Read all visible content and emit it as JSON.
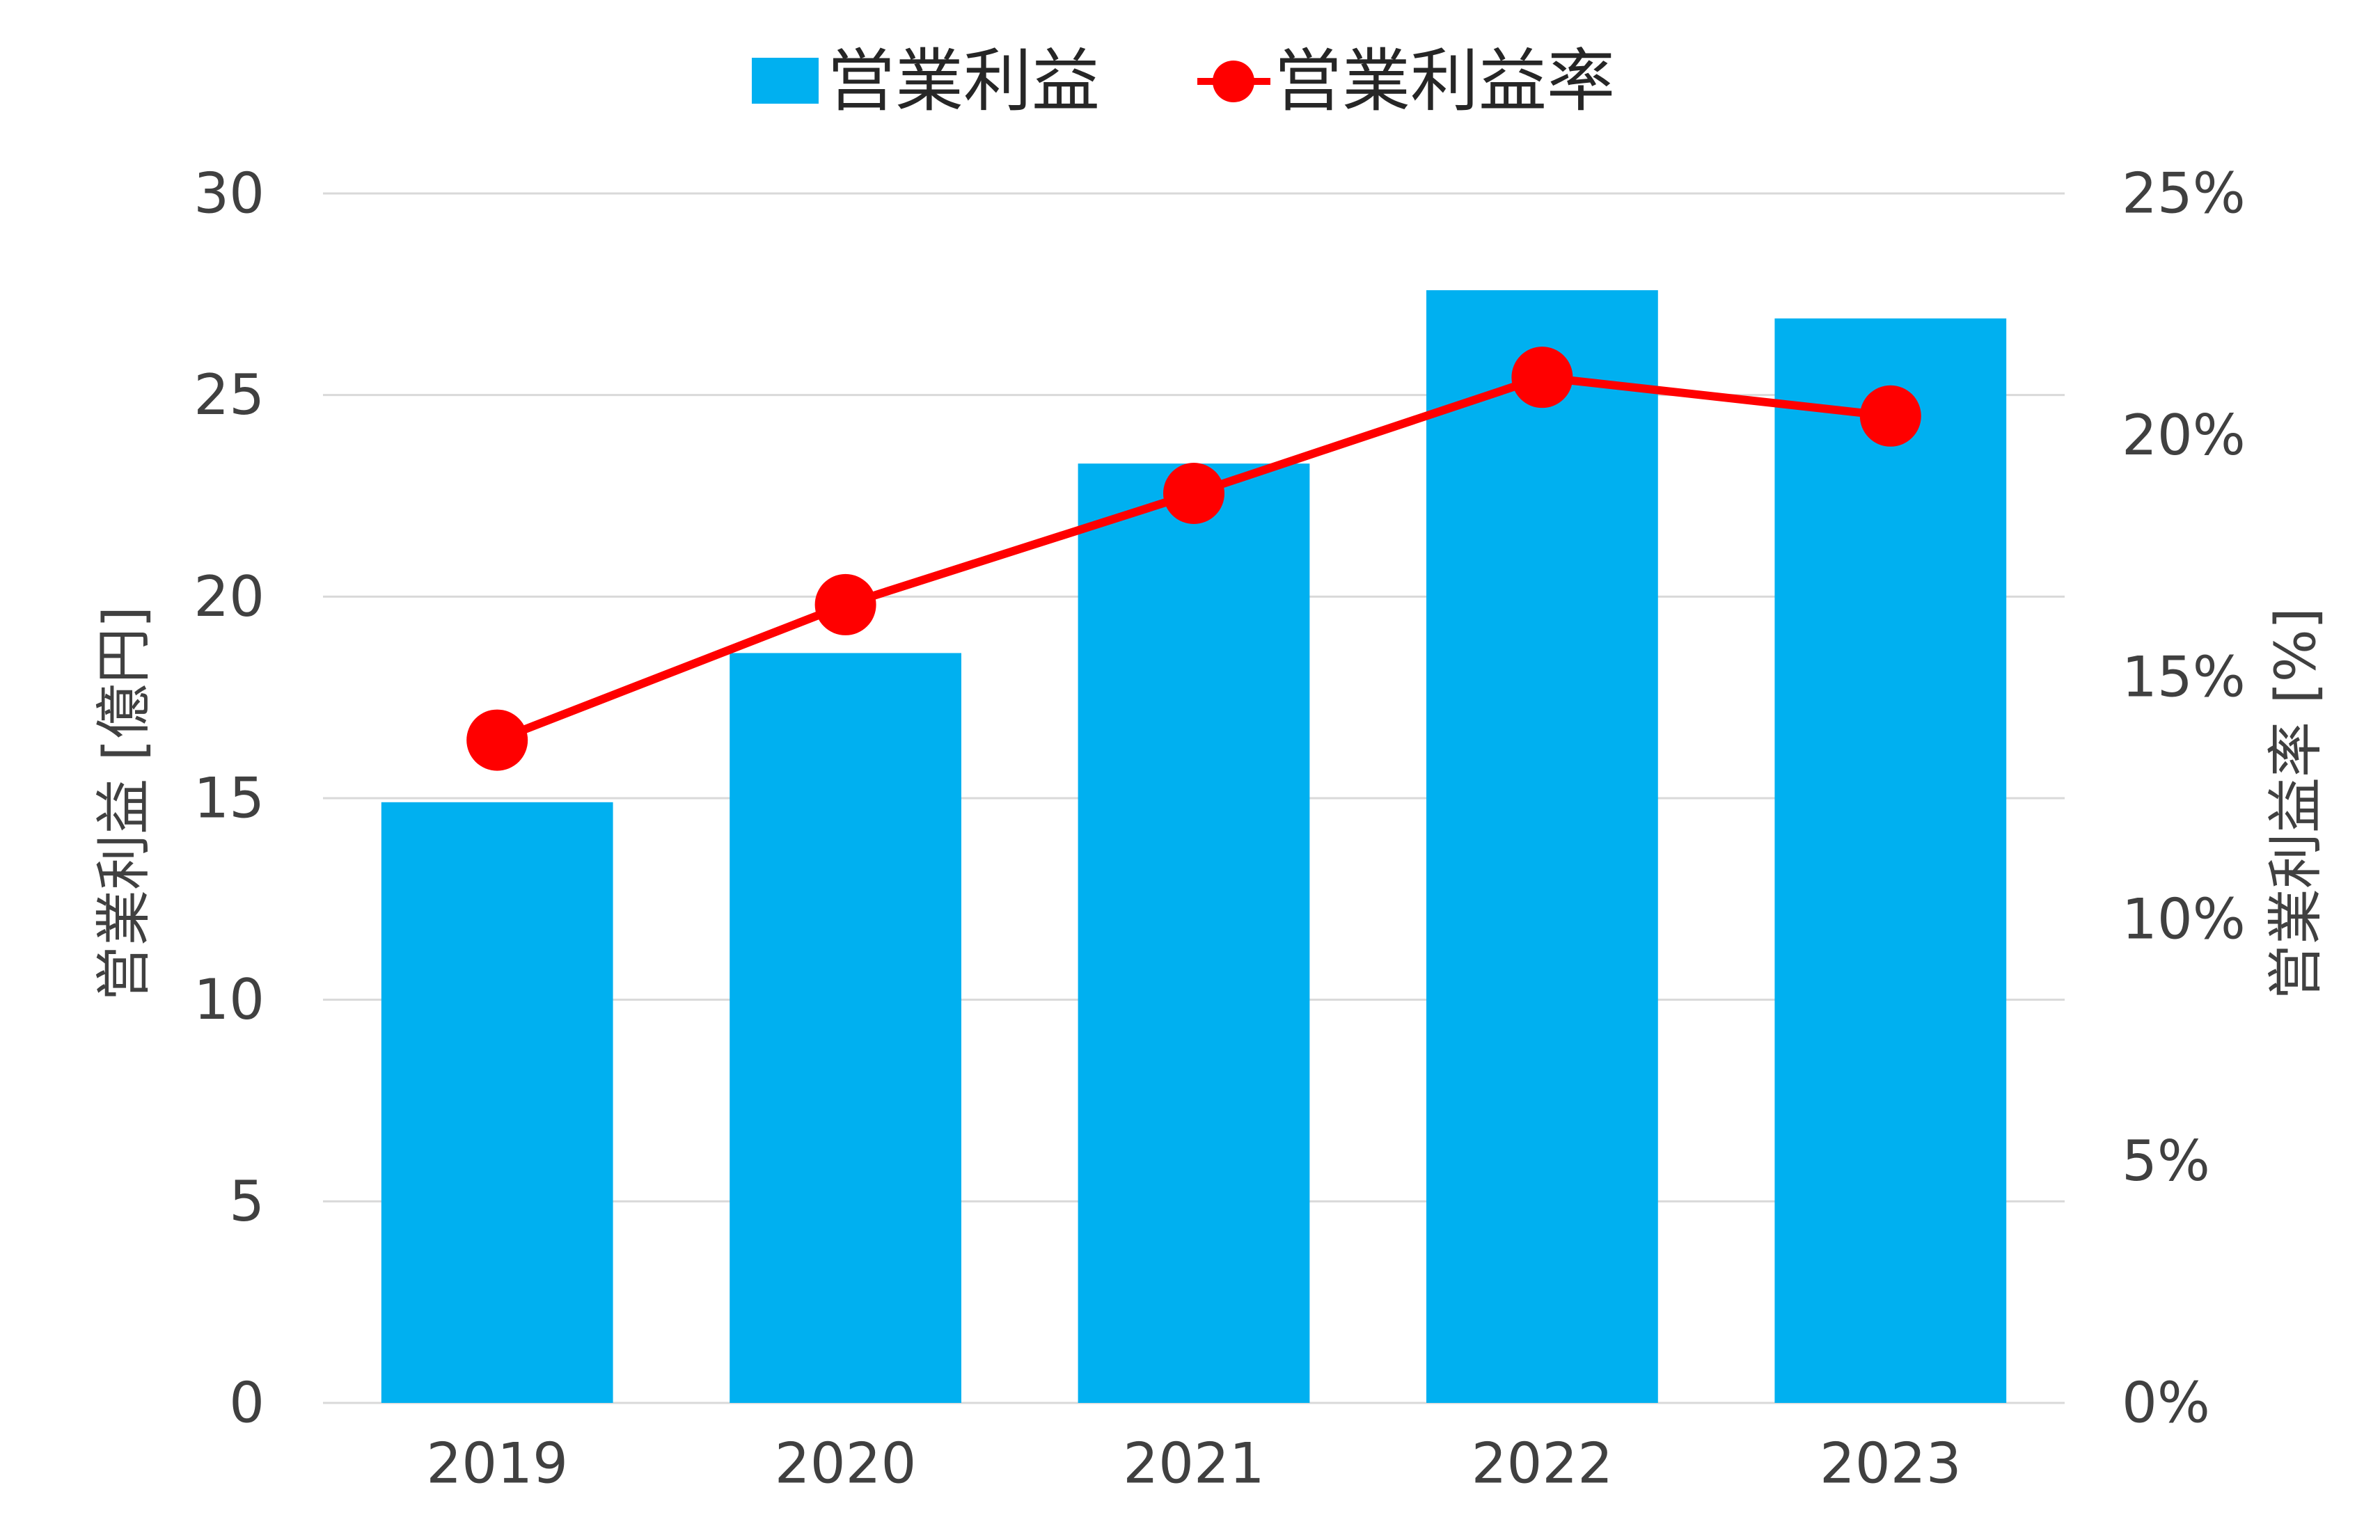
{
  "chart_data": {
    "type": "bar",
    "categories": [
      "2019",
      "2020",
      "2021",
      "2022",
      "2023"
    ],
    "series": [
      {
        "name": "営業利益",
        "type": "bar",
        "axis": "left",
        "color": "#00B0F0",
        "values": [
          14.9,
          18.6,
          23.3,
          27.6,
          26.9
        ]
      },
      {
        "name": "営業利益率",
        "type": "line",
        "axis": "right",
        "color": "#FF0000",
        "marker": "circle",
        "values": [
          13.7,
          16.5,
          18.8,
          21.2,
          20.4
        ]
      }
    ],
    "y_left": {
      "label": "営業利益 [億円]",
      "ylim": [
        0,
        30
      ],
      "ticks": [
        "0",
        "5",
        "10",
        "15",
        "20",
        "25",
        "30"
      ]
    },
    "y_right": {
      "label": "営業利益率 [%]",
      "ylim": [
        0,
        25
      ],
      "ticks": [
        "0%",
        "5%",
        "10%",
        "15%",
        "20%",
        "25%"
      ]
    },
    "xlabel": "",
    "title": "",
    "grid": true,
    "legend_position": "top-center"
  }
}
